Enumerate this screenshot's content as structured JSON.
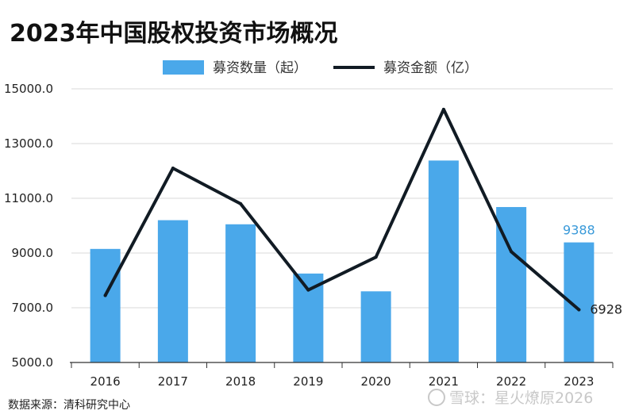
{
  "chart_data": {
    "type": "bar",
    "title": "2023年中国股权投资市场概况",
    "categories": [
      "2016",
      "2017",
      "2018",
      "2019",
      "2020",
      "2021",
      "2022",
      "2023"
    ],
    "series": [
      {
        "name": "募资数量（起）",
        "type": "bar",
        "color": "#4aa8ea",
        "values": [
          9150,
          10200,
          10050,
          8250,
          7600,
          12380,
          10680,
          9388
        ]
      },
      {
        "name": "募资金额（亿）",
        "type": "line",
        "color": "#111b24",
        "values": [
          7450,
          12100,
          10800,
          7650,
          8850,
          14250,
          9050,
          6928
        ]
      }
    ],
    "ylim": [
      5000,
      15000
    ],
    "yticks": [
      "5000.0",
      "7000.0",
      "9000.0",
      "11000.0",
      "13000.0",
      "15000.0"
    ],
    "grid": true,
    "legend_position": "top",
    "annotations": [
      {
        "category": "2023",
        "series": "募资数量（起）",
        "text": "9388"
      },
      {
        "category": "2023",
        "series": "募资金额（亿）",
        "text": "6928"
      }
    ]
  },
  "source": "数据来源：清科研究中心",
  "watermark": "雪球：星火燎原2026"
}
